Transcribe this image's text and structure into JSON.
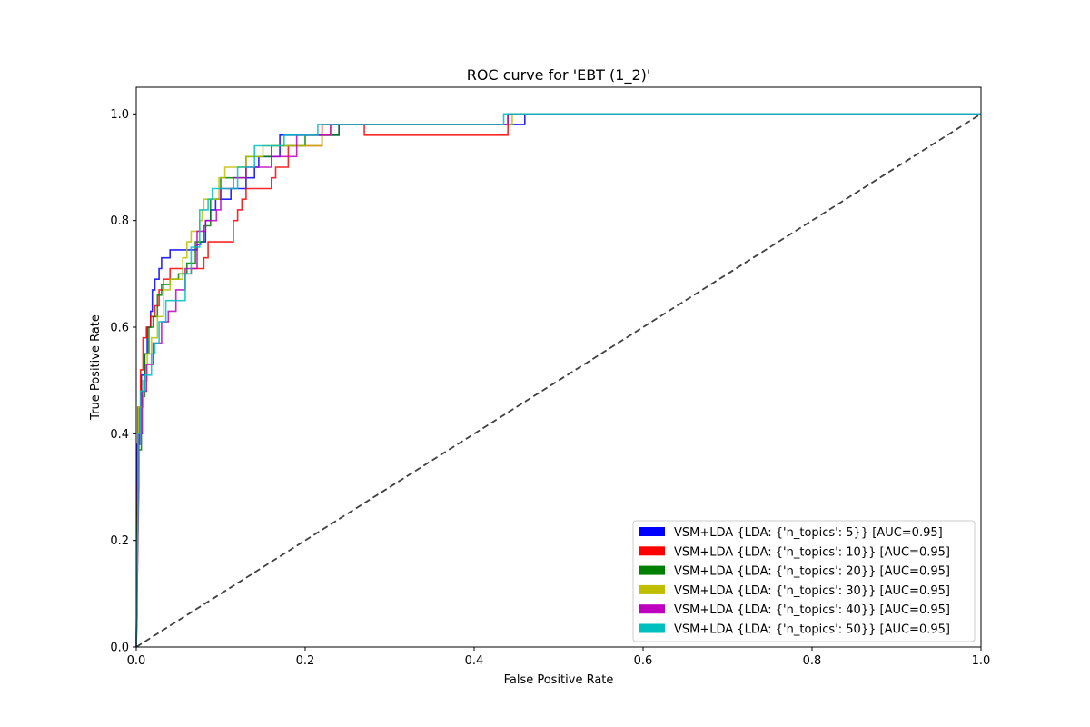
{
  "chart_data": {
    "type": "line",
    "title": "ROC curve for 'EBT (1_2)'",
    "xlabel": "False Positive Rate",
    "ylabel": "True Positive Rate",
    "xlim": [
      0.0,
      1.0
    ],
    "ylim": [
      0.0,
      1.05
    ],
    "xticks": [
      0.0,
      0.2,
      0.4,
      0.6,
      0.8,
      1.0
    ],
    "xtick_labels": [
      "0.0",
      "0.2",
      "0.4",
      "0.6",
      "0.8",
      "1.0"
    ],
    "yticks": [
      0.0,
      0.2,
      0.4,
      0.6,
      0.8,
      1.0
    ],
    "ytick_labels": [
      "0.0",
      "0.2",
      "0.4",
      "0.6",
      "0.8",
      "1.0"
    ],
    "grid": false,
    "legend_position": "lower-right",
    "diagonal": {
      "x": [
        0,
        1
      ],
      "y": [
        0,
        1
      ],
      "color": "#404040",
      "style": "dashed"
    },
    "series": [
      {
        "name": "VSM+LDA {LDA: {'n_topics': 5}} [AUC=0.95]",
        "color": "#0000ff",
        "x": [
          0,
          0.001,
          0.001,
          0.004,
          0.004,
          0.006,
          0.006,
          0.01,
          0.01,
          0.013,
          0.013,
          0.017,
          0.017,
          0.019,
          0.019,
          0.022,
          0.022,
          0.027,
          0.027,
          0.03,
          0.03,
          0.035,
          0.035,
          0.04,
          0.04,
          0.072,
          0.072,
          0.076,
          0.076,
          0.082,
          0.082,
          0.088,
          0.088,
          0.094,
          0.094,
          0.112,
          0.112,
          0.13,
          0.13,
          0.14,
          0.14,
          0.145,
          0.145,
          0.17,
          0.17,
          0.24,
          0.24,
          0.44,
          0.44,
          0.46,
          0.46,
          1.0
        ],
        "y": [
          0,
          0.06,
          0.38,
          0.38,
          0.45,
          0.45,
          0.51,
          0.51,
          0.55,
          0.55,
          0.6,
          0.6,
          0.63,
          0.63,
          0.67,
          0.67,
          0.69,
          0.69,
          0.71,
          0.71,
          0.73,
          0.73,
          0.73,
          0.73,
          0.745,
          0.745,
          0.755,
          0.755,
          0.76,
          0.76,
          0.8,
          0.8,
          0.82,
          0.82,
          0.84,
          0.84,
          0.86,
          0.86,
          0.88,
          0.88,
          0.9,
          0.9,
          0.92,
          0.92,
          0.96,
          0.96,
          0.98,
          0.98,
          0.98,
          0.98,
          1.0,
          1.0
        ]
      },
      {
        "name": "VSM+LDA {LDA: {'n_topics': 10}} [AUC=0.95]",
        "color": "#ff0000",
        "x": [
          0,
          0.002,
          0.002,
          0.005,
          0.005,
          0.008,
          0.008,
          0.012,
          0.012,
          0.017,
          0.017,
          0.022,
          0.022,
          0.027,
          0.027,
          0.032,
          0.032,
          0.04,
          0.04,
          0.055,
          0.055,
          0.065,
          0.065,
          0.07,
          0.07,
          0.08,
          0.08,
          0.085,
          0.085,
          0.115,
          0.115,
          0.12,
          0.12,
          0.125,
          0.125,
          0.13,
          0.13,
          0.16,
          0.16,
          0.165,
          0.165,
          0.18,
          0.18,
          0.22,
          0.22,
          0.27,
          0.27,
          0.44,
          0.44,
          1.0
        ],
        "y": [
          0,
          0.35,
          0.45,
          0.45,
          0.52,
          0.52,
          0.58,
          0.58,
          0.6,
          0.6,
          0.62,
          0.62,
          0.64,
          0.64,
          0.67,
          0.67,
          0.69,
          0.69,
          0.71,
          0.71,
          0.7,
          0.7,
          0.71,
          0.71,
          0.71,
          0.71,
          0.73,
          0.73,
          0.76,
          0.76,
          0.8,
          0.8,
          0.82,
          0.82,
          0.84,
          0.84,
          0.86,
          0.86,
          0.88,
          0.88,
          0.9,
          0.9,
          0.94,
          0.94,
          0.98,
          0.98,
          0.96,
          0.96,
          1.0,
          1.0
        ]
      },
      {
        "name": "VSM+LDA {LDA: {'n_topics': 20}} [AUC=0.95]",
        "color": "#008000",
        "x": [
          0,
          0.002,
          0.002,
          0.006,
          0.006,
          0.01,
          0.01,
          0.015,
          0.015,
          0.02,
          0.02,
          0.025,
          0.025,
          0.03,
          0.03,
          0.04,
          0.04,
          0.05,
          0.05,
          0.06,
          0.06,
          0.07,
          0.07,
          0.08,
          0.08,
          0.088,
          0.088,
          0.1,
          0.1,
          0.13,
          0.13,
          0.16,
          0.16,
          0.2,
          0.2,
          0.24,
          0.24,
          0.44,
          0.44,
          1.0
        ],
        "y": [
          0,
          0.32,
          0.37,
          0.37,
          0.47,
          0.47,
          0.55,
          0.55,
          0.6,
          0.6,
          0.62,
          0.62,
          0.66,
          0.66,
          0.68,
          0.68,
          0.69,
          0.69,
          0.7,
          0.7,
          0.72,
          0.72,
          0.76,
          0.76,
          0.79,
          0.79,
          0.84,
          0.84,
          0.88,
          0.88,
          0.92,
          0.92,
          0.94,
          0.94,
          0.96,
          0.96,
          0.98,
          0.98,
          1.0,
          1.0
        ]
      },
      {
        "name": "VSM+LDA {LDA: {'n_topics': 30}} [AUC=0.95]",
        "color": "#bfbf00",
        "x": [
          0,
          0.003,
          0.003,
          0.008,
          0.008,
          0.013,
          0.013,
          0.018,
          0.018,
          0.025,
          0.025,
          0.032,
          0.032,
          0.04,
          0.04,
          0.055,
          0.055,
          0.06,
          0.06,
          0.065,
          0.065,
          0.075,
          0.075,
          0.078,
          0.078,
          0.08,
          0.08,
          0.098,
          0.098,
          0.105,
          0.105,
          0.12,
          0.12,
          0.13,
          0.13,
          0.15,
          0.15,
          0.19,
          0.19,
          0.22,
          0.22,
          0.23,
          0.23,
          0.445,
          0.445,
          1.0
        ],
        "y": [
          0,
          0.34,
          0.45,
          0.45,
          0.5,
          0.5,
          0.55,
          0.55,
          0.58,
          0.58,
          0.62,
          0.62,
          0.67,
          0.67,
          0.69,
          0.69,
          0.73,
          0.73,
          0.76,
          0.76,
          0.78,
          0.78,
          0.8,
          0.8,
          0.82,
          0.82,
          0.84,
          0.84,
          0.88,
          0.88,
          0.9,
          0.9,
          0.9,
          0.9,
          0.92,
          0.92,
          0.94,
          0.94,
          0.94,
          0.94,
          0.96,
          0.96,
          0.98,
          0.98,
          1.0,
          1.0
        ]
      },
      {
        "name": "VSM+LDA {LDA: {'n_topics': 40}} [AUC=0.95]",
        "color": "#bf00bf",
        "x": [
          0,
          0.003,
          0.003,
          0.007,
          0.007,
          0.012,
          0.012,
          0.02,
          0.02,
          0.03,
          0.03,
          0.038,
          0.038,
          0.047,
          0.047,
          0.058,
          0.058,
          0.072,
          0.072,
          0.082,
          0.082,
          0.095,
          0.095,
          0.1,
          0.1,
          0.115,
          0.115,
          0.13,
          0.13,
          0.16,
          0.16,
          0.19,
          0.19,
          0.23,
          0.23,
          0.44,
          0.44,
          1.0
        ],
        "y": [
          0,
          0.3,
          0.4,
          0.4,
          0.48,
          0.48,
          0.53,
          0.53,
          0.57,
          0.57,
          0.61,
          0.61,
          0.63,
          0.63,
          0.67,
          0.67,
          0.71,
          0.71,
          0.78,
          0.78,
          0.8,
          0.8,
          0.82,
          0.82,
          0.86,
          0.86,
          0.88,
          0.88,
          0.9,
          0.9,
          0.92,
          0.92,
          0.96,
          0.96,
          0.98,
          0.98,
          1.0,
          1.0
        ]
      },
      {
        "name": "VSM+LDA {LDA: {'n_topics': 50}} [AUC=0.95]",
        "color": "#00bfbf",
        "x": [
          0,
          0.002,
          0.002,
          0.005,
          0.005,
          0.01,
          0.01,
          0.018,
          0.018,
          0.022,
          0.022,
          0.027,
          0.027,
          0.035,
          0.035,
          0.058,
          0.058,
          0.065,
          0.065,
          0.075,
          0.075,
          0.085,
          0.085,
          0.09,
          0.09,
          0.1,
          0.1,
          0.12,
          0.12,
          0.14,
          0.14,
          0.16,
          0.16,
          0.175,
          0.175,
          0.2,
          0.2,
          0.215,
          0.215,
          0.435,
          0.435,
          1.0
        ],
        "y": [
          0,
          0.26,
          0.4,
          0.4,
          0.48,
          0.48,
          0.51,
          0.51,
          0.55,
          0.55,
          0.57,
          0.57,
          0.61,
          0.61,
          0.65,
          0.65,
          0.7,
          0.7,
          0.75,
          0.75,
          0.82,
          0.82,
          0.84,
          0.84,
          0.86,
          0.86,
          0.86,
          0.86,
          0.9,
          0.9,
          0.94,
          0.94,
          0.94,
          0.94,
          0.96,
          0.96,
          0.96,
          0.96,
          0.98,
          0.98,
          1.0,
          1.0
        ]
      }
    ]
  }
}
